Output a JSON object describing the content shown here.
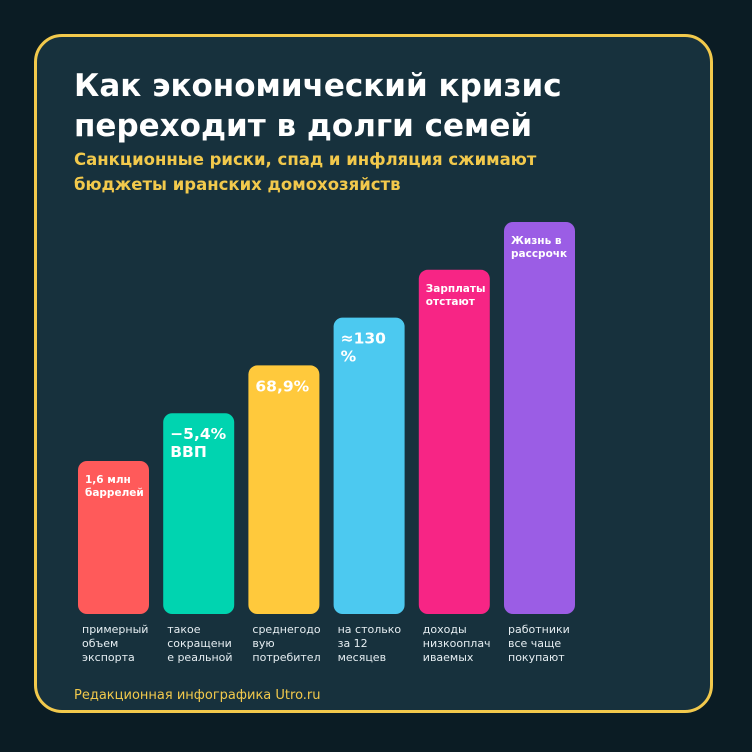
{
  "title_line1": "Как экономический кризис",
  "title_line2": "переходит в долги семей",
  "subtitle_line1": "Санкционные риски, спад и инфляция сжимают",
  "subtitle_line2": "бюджеты иранских домохозяйств",
  "footer": "Редакционная инфографика Utro.ru",
  "colors": {
    "background": "#0b1c24",
    "card": "#17313d",
    "border": "#f2c94c",
    "title": "#ffffff",
    "accent": "#f2c94c"
  },
  "chart_data": {
    "type": "bar",
    "bars": [
      {
        "label": [
          "1,6 млн",
          "баррелей"
        ],
        "category": [
          "примерный",
          "объем",
          "экспорта"
        ],
        "color": "#ff5a5a",
        "label_size": "small",
        "relative_height": 1
      },
      {
        "label": [
          "−5,4%",
          "ВВП"
        ],
        "category": [
          "такое",
          "сокращени",
          "е реальной"
        ],
        "color": "#00d4b0",
        "label_size": "large",
        "relative_height": 2
      },
      {
        "label": [
          "68,9%"
        ],
        "category": [
          "среднегодо",
          "вую",
          "потребител"
        ],
        "color": "#ffc93c",
        "label_size": "large",
        "relative_height": 3
      },
      {
        "label": [
          "≈130",
          "%"
        ],
        "category": [
          "на столько",
          "за 12",
          "месяцев"
        ],
        "color": "#4cc9f0",
        "label_size": "large",
        "relative_height": 4
      },
      {
        "label": [
          "Зарплаты",
          "отстают"
        ],
        "category": [
          "доходы",
          "низкооплач",
          "иваемых"
        ],
        "color": "#f72585",
        "label_size": "small",
        "relative_height": 5
      },
      {
        "label": [
          "Жизнь в",
          "рассрочк"
        ],
        "category": [
          "работники",
          "все чаще",
          "покупают"
        ],
        "color": "#9b5de5",
        "label_size": "small",
        "relative_height": 6
      }
    ]
  }
}
